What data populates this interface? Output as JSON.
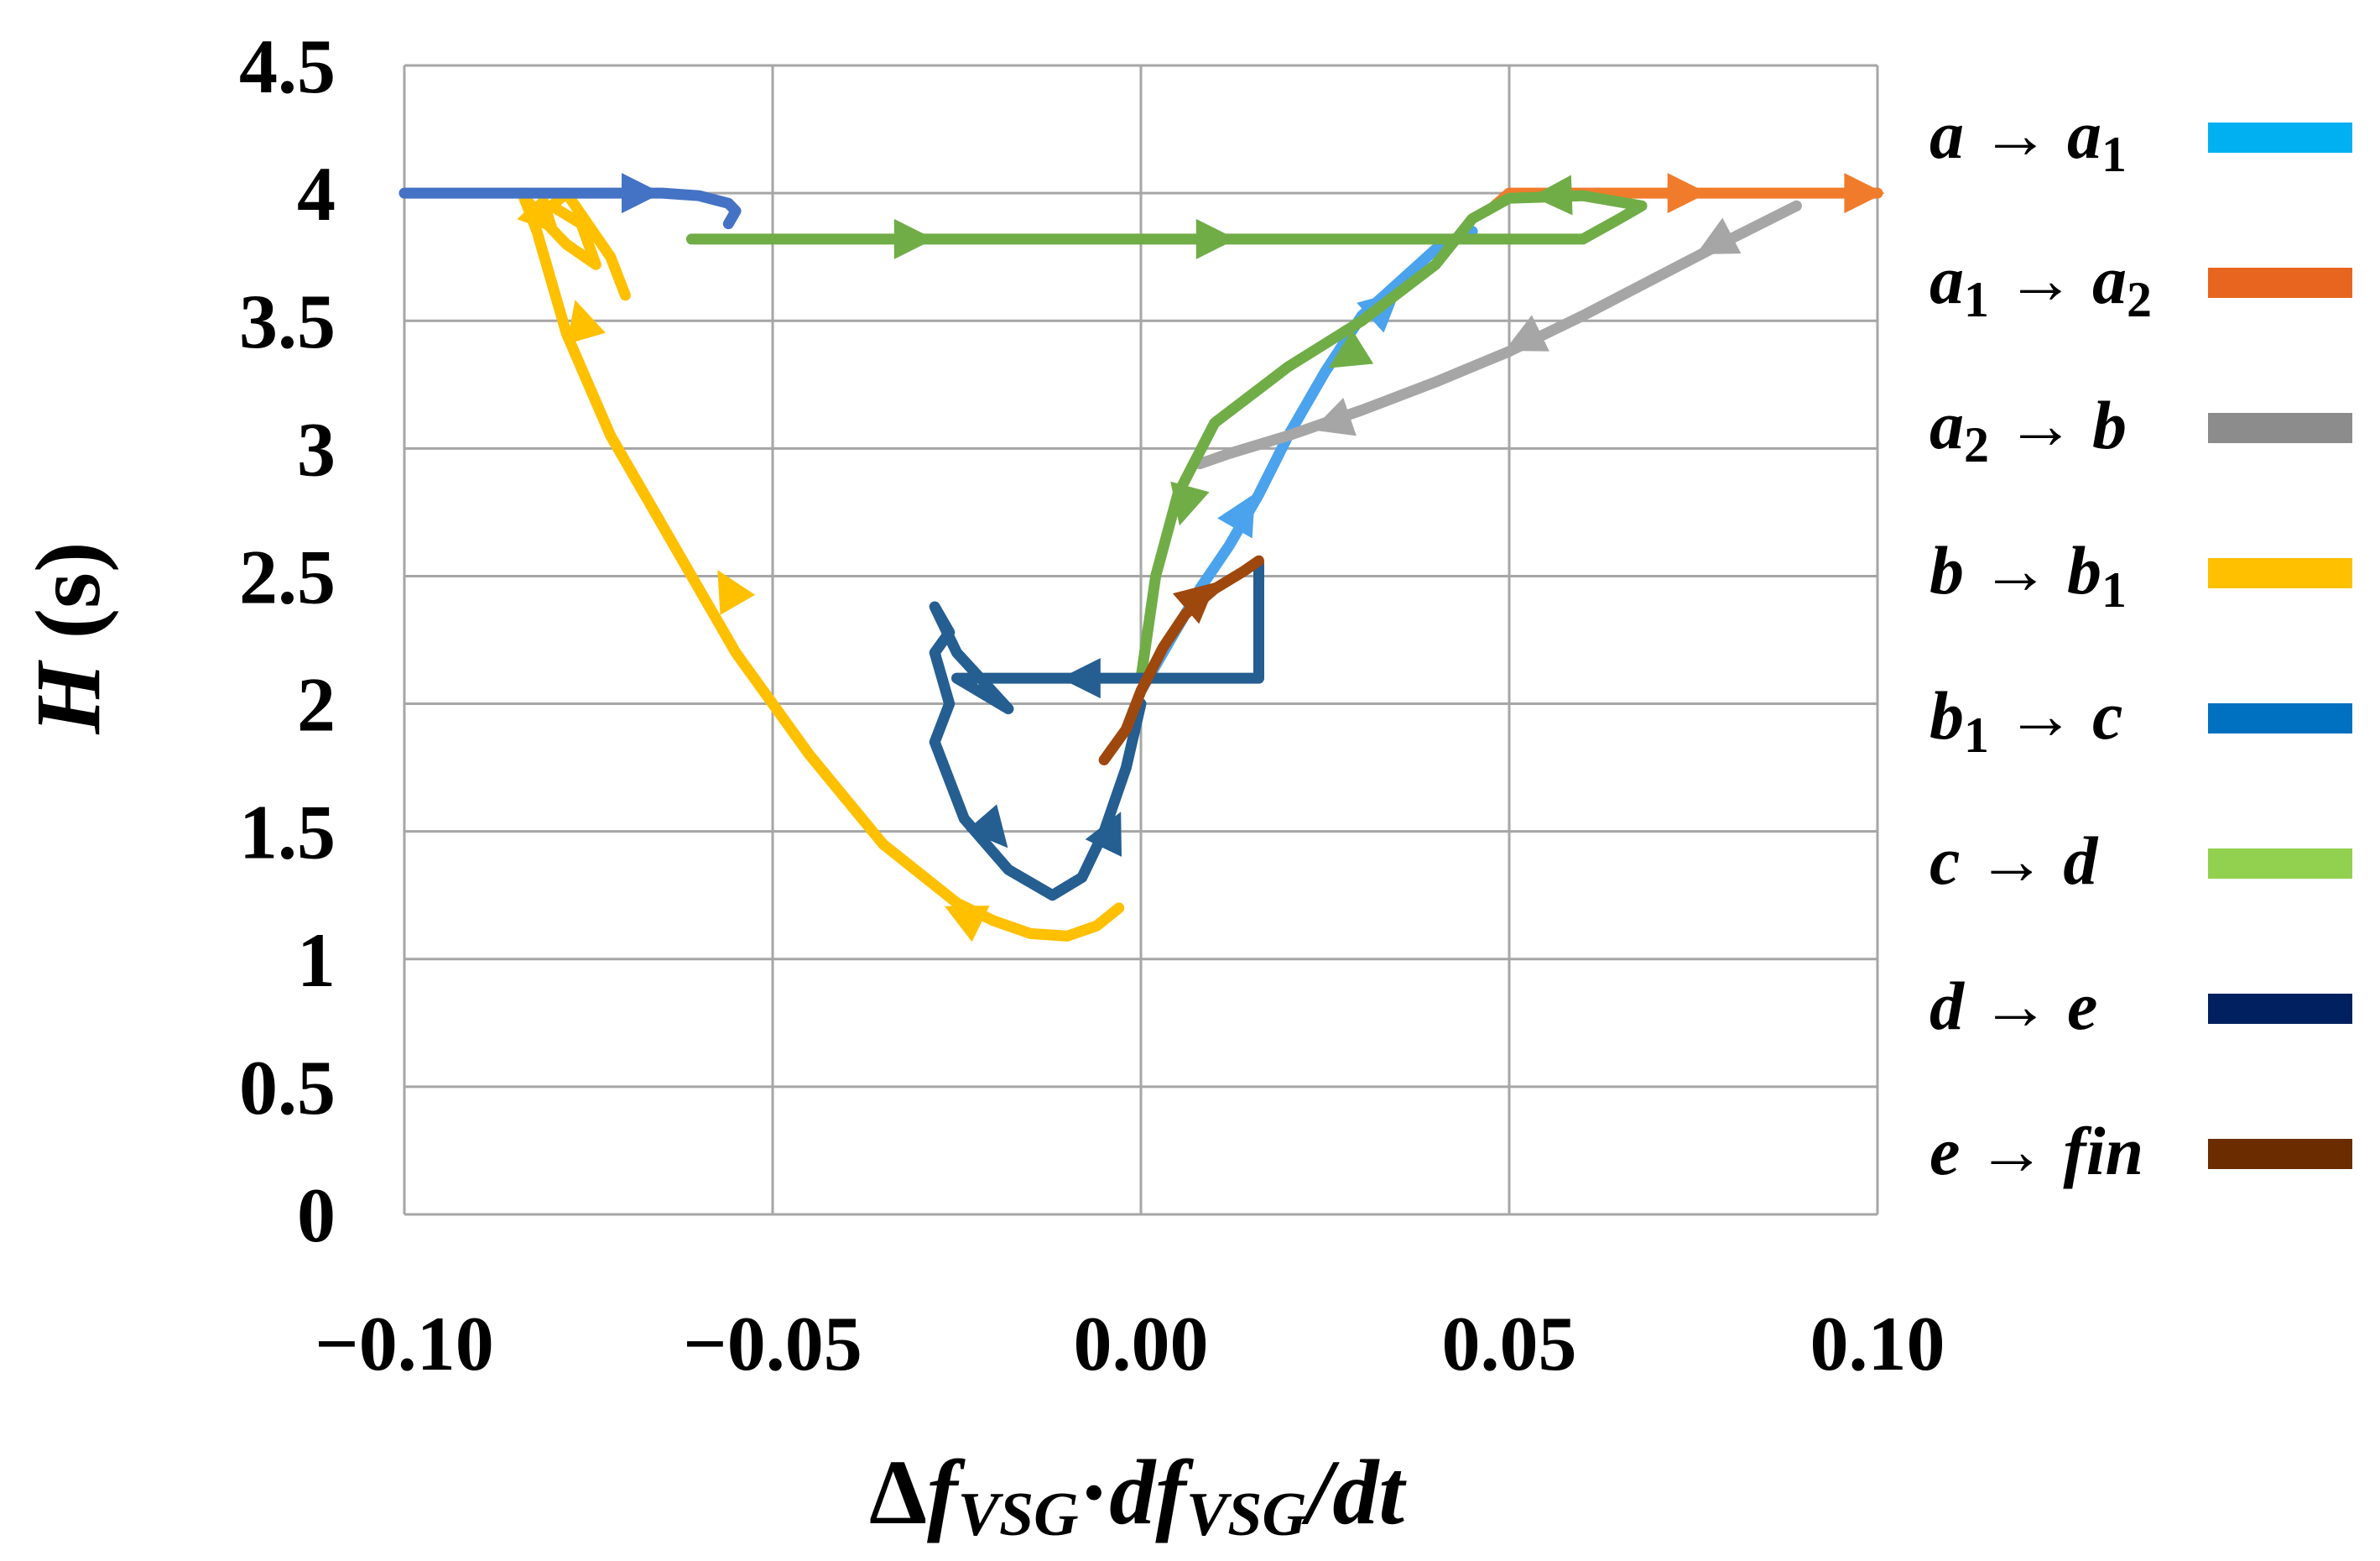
{
  "chart_data": {
    "type": "line",
    "title": "",
    "xlabel": "Δf_VSG·df_VSG/dt",
    "xlabel_parts": {
      "delta": "Δ",
      "f": "f",
      "sub": "VSG",
      "dot": "·",
      "df": "df",
      "slash_dt": "/dt"
    },
    "ylabel": "H (s)",
    "ylabel_parts": {
      "var": "H",
      "unit": " (s)"
    },
    "xlim": [
      -0.1,
      0.1
    ],
    "ylim": [
      0,
      4.5
    ],
    "x_ticks": [
      -0.1,
      -0.05,
      0.0,
      0.05,
      0.1
    ],
    "x_tick_labels": [
      "−0.10",
      "−0.05",
      "0.00",
      "0.05",
      "0.10"
    ],
    "y_ticks": [
      0,
      0.5,
      1,
      1.5,
      2,
      2.5,
      3,
      3.5,
      4,
      4.5
    ],
    "y_tick_labels": [
      "0",
      "0.5",
      "1",
      "1.5",
      "2",
      "2.5",
      "3",
      "3.5",
      "4",
      "4.5"
    ],
    "grid": true,
    "legend_position": "right",
    "series": [
      {
        "name": "a → a1",
        "from": "a",
        "to": "a",
        "to_sub": "1",
        "color": "#00b0f0",
        "line_color": "#4aa3ec",
        "x": [
          0.0,
          0.004,
          0.008,
          0.012,
          0.016,
          0.02,
          0.025,
          0.03,
          0.035,
          0.04,
          0.045
        ],
        "y": [
          2.05,
          2.25,
          2.45,
          2.62,
          2.82,
          3.05,
          3.3,
          3.52,
          3.65,
          3.78,
          3.85
        ],
        "arrows": [
          [
            0.014,
            2.75
          ],
          [
            0.033,
            3.56
          ]
        ]
      },
      {
        "name": "a1 → a2",
        "from": "a",
        "from_sub": "1",
        "to": "a",
        "to_sub": "2",
        "color": "#e7651e",
        "line_color": "#f07b2b",
        "x": [
          0.048,
          0.05,
          0.06,
          0.07,
          0.08,
          0.09,
          0.1
        ],
        "y": [
          3.95,
          4.0,
          4.0,
          4.0,
          4.0,
          4.0,
          4.0
        ],
        "arrows": [
          [
            0.074,
            4.0
          ],
          [
            0.098,
            4.0
          ]
        ]
      },
      {
        "name": "a2 → b",
        "from": "a",
        "from_sub": "2",
        "to": "b",
        "color": "#8c8c8c",
        "line_color": "#a6a6a6",
        "x": [
          0.089,
          0.08,
          0.07,
          0.06,
          0.05,
          0.04,
          0.03,
          0.02,
          0.012,
          0.008
        ],
        "y": [
          3.95,
          3.82,
          3.67,
          3.52,
          3.38,
          3.26,
          3.15,
          3.05,
          2.98,
          2.94
        ],
        "arrows": [
          [
            0.078,
            3.8
          ],
          [
            0.052,
            3.42
          ],
          [
            0.026,
            3.1
          ]
        ]
      },
      {
        "name": "b → b1",
        "from": "b",
        "to": "b",
        "to_sub": "1",
        "color": "#ffc000",
        "line_color": "#ffc000",
        "x": [
          -0.003,
          -0.006,
          -0.01,
          -0.015,
          -0.02,
          -0.025,
          -0.035,
          -0.045,
          -0.055,
          -0.062,
          -0.068,
          -0.072,
          -0.075,
          -0.078,
          -0.08,
          -0.082,
          -0.084,
          -0.082,
          -0.078,
          -0.074,
          -0.076,
          -0.08,
          -0.078,
          -0.072,
          -0.07
        ],
        "y": [
          1.2,
          1.13,
          1.09,
          1.1,
          1.15,
          1.22,
          1.45,
          1.8,
          2.2,
          2.55,
          2.85,
          3.05,
          3.25,
          3.45,
          3.65,
          3.85,
          4.0,
          3.92,
          3.8,
          3.72,
          3.88,
          3.95,
          4.0,
          3.75,
          3.6
        ],
        "arrows": [
          [
            -0.024,
            1.17
          ],
          [
            -0.056,
            2.45
          ],
          [
            -0.076,
            3.5
          ],
          [
            -0.081,
            3.9
          ]
        ]
      },
      {
        "name": "b1 → c",
        "from": "b",
        "from_sub": "1",
        "to": "c",
        "color": "#0070c0",
        "line_color": "#4472c4",
        "x": [
          -0.1,
          -0.09,
          -0.08,
          -0.07,
          -0.065,
          -0.06,
          -0.056,
          -0.055,
          -0.056
        ],
        "y": [
          4.0,
          4.0,
          4.0,
          4.0,
          4.0,
          3.99,
          3.96,
          3.93,
          3.88
        ],
        "arrows": [
          [
            -0.068,
            4.0
          ]
        ]
      },
      {
        "name": "c → d",
        "from": "c",
        "to": "d",
        "color": "#92d050",
        "line_color": "#70ad47",
        "x": [
          -0.061,
          -0.05,
          -0.03,
          -0.01,
          0.01,
          0.03,
          0.05,
          0.06,
          0.065,
          0.068,
          0.06,
          0.05,
          0.045,
          0.04,
          0.03,
          0.02,
          0.01,
          0.005,
          0.002,
          0.0
        ],
        "y": [
          3.82,
          3.82,
          3.82,
          3.82,
          3.82,
          3.82,
          3.82,
          3.82,
          3.9,
          3.95,
          3.99,
          3.98,
          3.9,
          3.72,
          3.5,
          3.32,
          3.1,
          2.82,
          2.5,
          2.1
        ],
        "arrows": [
          [
            -0.031,
            3.82
          ],
          [
            0.01,
            3.82
          ],
          [
            0.056,
            3.99
          ],
          [
            0.028,
            3.36
          ],
          [
            0.006,
            2.78
          ]
        ]
      },
      {
        "name": "d → e",
        "from": "d",
        "to": "e",
        "color": "#002060",
        "line_color": "#255e91",
        "x": [
          0.016,
          0.016,
          0.008,
          0.0,
          -0.008,
          -0.016,
          -0.025,
          -0.018,
          -0.025,
          -0.028,
          -0.026,
          -0.028,
          -0.026,
          -0.028,
          -0.024,
          -0.018,
          -0.012,
          -0.008,
          -0.005,
          -0.002,
          0.0
        ],
        "y": [
          2.55,
          2.1,
          2.1,
          2.1,
          2.1,
          2.1,
          2.1,
          1.98,
          2.2,
          2.38,
          2.28,
          2.2,
          2.0,
          1.85,
          1.55,
          1.35,
          1.25,
          1.32,
          1.5,
          1.75,
          2.0
        ],
        "arrows": [
          [
            -0.008,
            2.1
          ],
          [
            -0.02,
            1.5
          ],
          [
            -0.004,
            1.5
          ]
        ]
      },
      {
        "name": "e → fin",
        "from": "e",
        "to": "fin",
        "color": "#6b2c00",
        "line_color": "#9e480e",
        "x": [
          -0.005,
          -0.002,
          0.0,
          0.003,
          0.006,
          0.01,
          0.014,
          0.016
        ],
        "y": [
          1.78,
          1.9,
          2.05,
          2.22,
          2.35,
          2.45,
          2.52,
          2.56
        ],
        "arrows": [
          [
            0.008,
            2.42
          ]
        ]
      }
    ]
  }
}
